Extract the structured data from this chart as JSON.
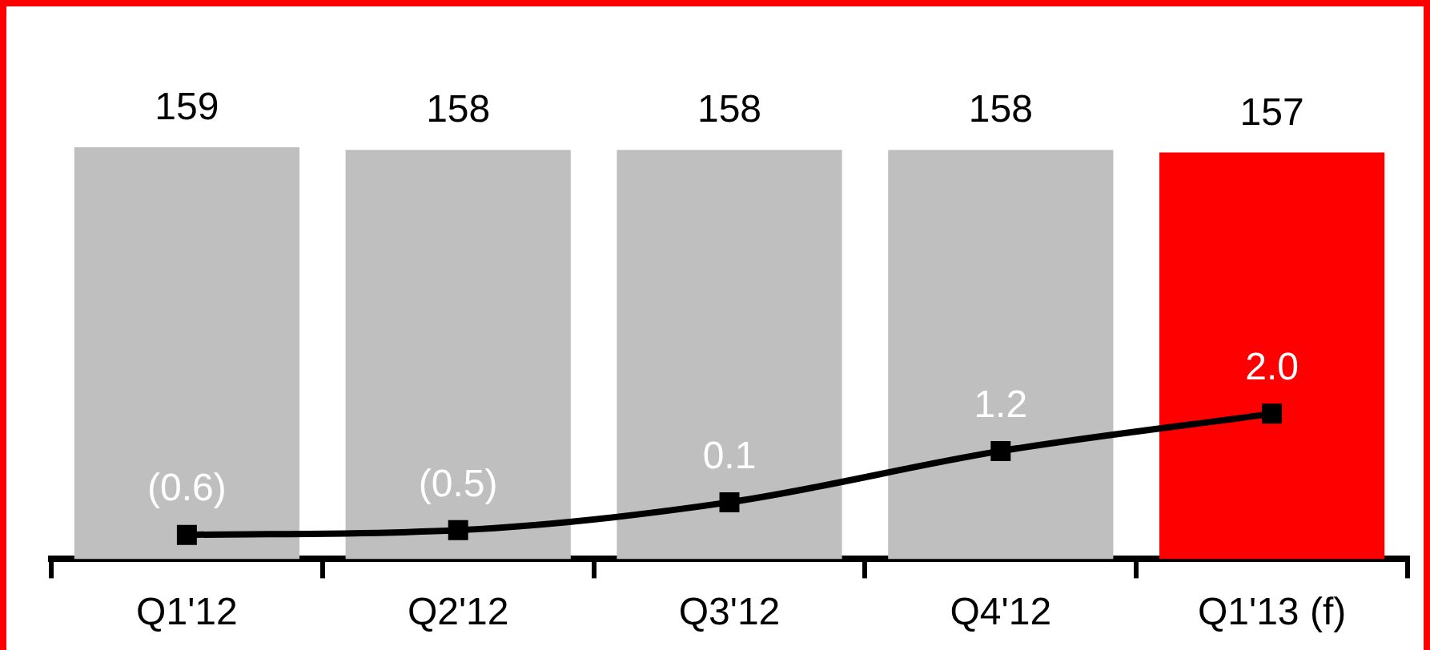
{
  "chart_data": {
    "type": "bar",
    "categories": [
      "Q1'12",
      "Q2'12",
      "Q3'12",
      "Q4'12",
      "Q1'13 (f)"
    ],
    "series": [
      {
        "values": [
          159,
          158,
          158,
          158,
          157
        ],
        "colors": [
          "#bfbfbf",
          "#bfbfbf",
          "#bfbfbf",
          "#bfbfbf",
          "#ff0000"
        ]
      },
      {
        "type": "line",
        "axis": "y2",
        "color": "#000000",
        "values": [
          -0.6,
          -0.5,
          0.1,
          1.2,
          2.0
        ],
        "value_labels": [
          "(0.6)",
          "(0.5)",
          "0.1",
          "1.2",
          "2.0"
        ]
      }
    ],
    "data_labels": true,
    "marker": "square"
  }
}
